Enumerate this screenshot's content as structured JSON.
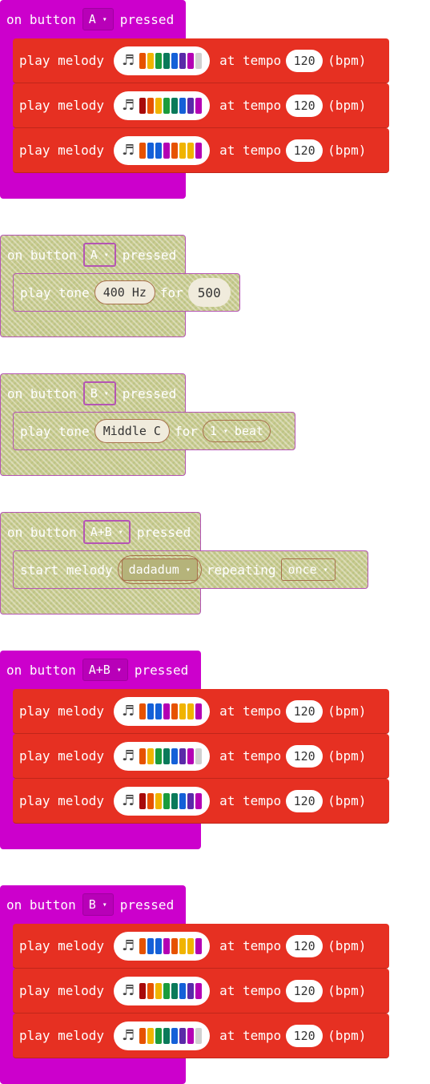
{
  "colors": {
    "hat_magenta": "#cc00cc",
    "music_red": "#e63022",
    "disabled_tan": "#c9c98f",
    "pill_white": "#ffffff",
    "note_red": "#a80a0a",
    "note_orange": "#e65200",
    "note_yellow": "#f0b400",
    "note_green": "#1a9c3c",
    "note_teal": "#0a7a5a",
    "note_blue": "#1460d8",
    "note_purple": "#5a2aa8",
    "note_magenta": "#b400b4",
    "note_gray": "#d0d0d0"
  },
  "labels": {
    "on_button": "on button",
    "pressed": "pressed",
    "play_melody": "play melody",
    "at_tempo": "at tempo",
    "bpm": "(bpm)",
    "play_tone": "play tone",
    "for": "for",
    "start_melody": "start melody",
    "repeating": "repeating",
    "caret": "▾",
    "note_icon": "♬"
  },
  "blocks": [
    {
      "button": "A",
      "melodies": [
        {
          "tempo": "120",
          "cells": [
            "#e65200",
            "#f0b400",
            "#1a9c3c",
            "#0a7a5a",
            "#1460d8",
            "#5a2aa8",
            "#b400b4",
            "#d0d0d0"
          ]
        },
        {
          "tempo": "120",
          "cells": [
            "#a80a0a",
            "#e65200",
            "#f0b400",
            "#1a9c3c",
            "#0a7a5a",
            "#1460d8",
            "#5a2aa8",
            "#b400b4"
          ]
        },
        {
          "tempo": "120",
          "cells": [
            "#e65200",
            "#1460d8",
            "#1460d8",
            "#b400b4",
            "#e65200",
            "#f0b400",
            "#f0b400",
            "#b400b4"
          ]
        }
      ]
    },
    {
      "button": "A",
      "tone_hz": "400 Hz",
      "tone_for": "500"
    },
    {
      "button": "B",
      "tone_note": "Middle C",
      "beat_value": "1",
      "beat_label": "beat"
    },
    {
      "button": "A+B",
      "melody_name": "dadadum",
      "repeat_mode": "once"
    },
    {
      "button": "A+B",
      "melodies": [
        {
          "tempo": "120",
          "cells": [
            "#e65200",
            "#1460d8",
            "#1460d8",
            "#b400b4",
            "#e65200",
            "#f0b400",
            "#f0b400",
            "#b400b4"
          ]
        },
        {
          "tempo": "120",
          "cells": [
            "#e65200",
            "#f0b400",
            "#1a9c3c",
            "#0a7a5a",
            "#1460d8",
            "#5a2aa8",
            "#b400b4",
            "#d0d0d0"
          ]
        },
        {
          "tempo": "120",
          "cells": [
            "#a80a0a",
            "#e65200",
            "#f0b400",
            "#1a9c3c",
            "#0a7a5a",
            "#1460d8",
            "#5a2aa8",
            "#b400b4"
          ]
        }
      ]
    },
    {
      "button": "B",
      "melodies": [
        {
          "tempo": "120",
          "cells": [
            "#e65200",
            "#1460d8",
            "#1460d8",
            "#b400b4",
            "#e65200",
            "#f0b400",
            "#f0b400",
            "#b400b4"
          ]
        },
        {
          "tempo": "120",
          "cells": [
            "#a80a0a",
            "#e65200",
            "#f0b400",
            "#1a9c3c",
            "#0a7a5a",
            "#1460d8",
            "#5a2aa8",
            "#b400b4"
          ]
        },
        {
          "tempo": "120",
          "cells": [
            "#e65200",
            "#f0b400",
            "#1a9c3c",
            "#0a7a5a",
            "#1460d8",
            "#5a2aa8",
            "#b400b4",
            "#d0d0d0"
          ]
        }
      ]
    }
  ]
}
